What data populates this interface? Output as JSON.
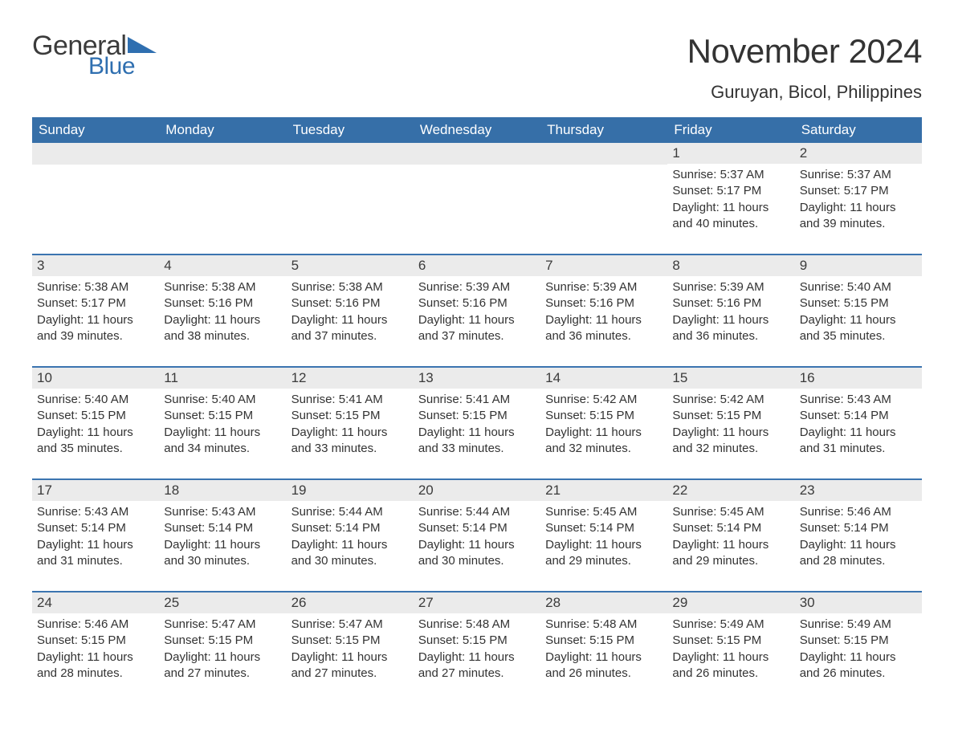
{
  "logo": {
    "text_general": "General",
    "text_blue": "Blue",
    "accent_color": "#2f6fb0"
  },
  "title": "November 2024",
  "location": "Guruyan, Bicol, Philippines",
  "colors": {
    "header_bg": "#366fa8",
    "header_text": "#ffffff",
    "week_border": "#3b74b0",
    "daynum_bg": "#ebebeb",
    "body_text": "#333333",
    "page_bg": "#ffffff"
  },
  "day_headers": [
    "Sunday",
    "Monday",
    "Tuesday",
    "Wednesday",
    "Thursday",
    "Friday",
    "Saturday"
  ],
  "weeks": [
    [
      {
        "day": "",
        "sunrise": "",
        "sunset": "",
        "daylight": ""
      },
      {
        "day": "",
        "sunrise": "",
        "sunset": "",
        "daylight": ""
      },
      {
        "day": "",
        "sunrise": "",
        "sunset": "",
        "daylight": ""
      },
      {
        "day": "",
        "sunrise": "",
        "sunset": "",
        "daylight": ""
      },
      {
        "day": "",
        "sunrise": "",
        "sunset": "",
        "daylight": ""
      },
      {
        "day": "1",
        "sunrise": "Sunrise: 5:37 AM",
        "sunset": "Sunset: 5:17 PM",
        "daylight": "Daylight: 11 hours and 40 minutes."
      },
      {
        "day": "2",
        "sunrise": "Sunrise: 5:37 AM",
        "sunset": "Sunset: 5:17 PM",
        "daylight": "Daylight: 11 hours and 39 minutes."
      }
    ],
    [
      {
        "day": "3",
        "sunrise": "Sunrise: 5:38 AM",
        "sunset": "Sunset: 5:17 PM",
        "daylight": "Daylight: 11 hours and 39 minutes."
      },
      {
        "day": "4",
        "sunrise": "Sunrise: 5:38 AM",
        "sunset": "Sunset: 5:16 PM",
        "daylight": "Daylight: 11 hours and 38 minutes."
      },
      {
        "day": "5",
        "sunrise": "Sunrise: 5:38 AM",
        "sunset": "Sunset: 5:16 PM",
        "daylight": "Daylight: 11 hours and 37 minutes."
      },
      {
        "day": "6",
        "sunrise": "Sunrise: 5:39 AM",
        "sunset": "Sunset: 5:16 PM",
        "daylight": "Daylight: 11 hours and 37 minutes."
      },
      {
        "day": "7",
        "sunrise": "Sunrise: 5:39 AM",
        "sunset": "Sunset: 5:16 PM",
        "daylight": "Daylight: 11 hours and 36 minutes."
      },
      {
        "day": "8",
        "sunrise": "Sunrise: 5:39 AM",
        "sunset": "Sunset: 5:16 PM",
        "daylight": "Daylight: 11 hours and 36 minutes."
      },
      {
        "day": "9",
        "sunrise": "Sunrise: 5:40 AM",
        "sunset": "Sunset: 5:15 PM",
        "daylight": "Daylight: 11 hours and 35 minutes."
      }
    ],
    [
      {
        "day": "10",
        "sunrise": "Sunrise: 5:40 AM",
        "sunset": "Sunset: 5:15 PM",
        "daylight": "Daylight: 11 hours and 35 minutes."
      },
      {
        "day": "11",
        "sunrise": "Sunrise: 5:40 AM",
        "sunset": "Sunset: 5:15 PM",
        "daylight": "Daylight: 11 hours and 34 minutes."
      },
      {
        "day": "12",
        "sunrise": "Sunrise: 5:41 AM",
        "sunset": "Sunset: 5:15 PM",
        "daylight": "Daylight: 11 hours and 33 minutes."
      },
      {
        "day": "13",
        "sunrise": "Sunrise: 5:41 AM",
        "sunset": "Sunset: 5:15 PM",
        "daylight": "Daylight: 11 hours and 33 minutes."
      },
      {
        "day": "14",
        "sunrise": "Sunrise: 5:42 AM",
        "sunset": "Sunset: 5:15 PM",
        "daylight": "Daylight: 11 hours and 32 minutes."
      },
      {
        "day": "15",
        "sunrise": "Sunrise: 5:42 AM",
        "sunset": "Sunset: 5:15 PM",
        "daylight": "Daylight: 11 hours and 32 minutes."
      },
      {
        "day": "16",
        "sunrise": "Sunrise: 5:43 AM",
        "sunset": "Sunset: 5:14 PM",
        "daylight": "Daylight: 11 hours and 31 minutes."
      }
    ],
    [
      {
        "day": "17",
        "sunrise": "Sunrise: 5:43 AM",
        "sunset": "Sunset: 5:14 PM",
        "daylight": "Daylight: 11 hours and 31 minutes."
      },
      {
        "day": "18",
        "sunrise": "Sunrise: 5:43 AM",
        "sunset": "Sunset: 5:14 PM",
        "daylight": "Daylight: 11 hours and 30 minutes."
      },
      {
        "day": "19",
        "sunrise": "Sunrise: 5:44 AM",
        "sunset": "Sunset: 5:14 PM",
        "daylight": "Daylight: 11 hours and 30 minutes."
      },
      {
        "day": "20",
        "sunrise": "Sunrise: 5:44 AM",
        "sunset": "Sunset: 5:14 PM",
        "daylight": "Daylight: 11 hours and 30 minutes."
      },
      {
        "day": "21",
        "sunrise": "Sunrise: 5:45 AM",
        "sunset": "Sunset: 5:14 PM",
        "daylight": "Daylight: 11 hours and 29 minutes."
      },
      {
        "day": "22",
        "sunrise": "Sunrise: 5:45 AM",
        "sunset": "Sunset: 5:14 PM",
        "daylight": "Daylight: 11 hours and 29 minutes."
      },
      {
        "day": "23",
        "sunrise": "Sunrise: 5:46 AM",
        "sunset": "Sunset: 5:14 PM",
        "daylight": "Daylight: 11 hours and 28 minutes."
      }
    ],
    [
      {
        "day": "24",
        "sunrise": "Sunrise: 5:46 AM",
        "sunset": "Sunset: 5:15 PM",
        "daylight": "Daylight: 11 hours and 28 minutes."
      },
      {
        "day": "25",
        "sunrise": "Sunrise: 5:47 AM",
        "sunset": "Sunset: 5:15 PM",
        "daylight": "Daylight: 11 hours and 27 minutes."
      },
      {
        "day": "26",
        "sunrise": "Sunrise: 5:47 AM",
        "sunset": "Sunset: 5:15 PM",
        "daylight": "Daylight: 11 hours and 27 minutes."
      },
      {
        "day": "27",
        "sunrise": "Sunrise: 5:48 AM",
        "sunset": "Sunset: 5:15 PM",
        "daylight": "Daylight: 11 hours and 27 minutes."
      },
      {
        "day": "28",
        "sunrise": "Sunrise: 5:48 AM",
        "sunset": "Sunset: 5:15 PM",
        "daylight": "Daylight: 11 hours and 26 minutes."
      },
      {
        "day": "29",
        "sunrise": "Sunrise: 5:49 AM",
        "sunset": "Sunset: 5:15 PM",
        "daylight": "Daylight: 11 hours and 26 minutes."
      },
      {
        "day": "30",
        "sunrise": "Sunrise: 5:49 AM",
        "sunset": "Sunset: 5:15 PM",
        "daylight": "Daylight: 11 hours and 26 minutes."
      }
    ]
  ]
}
